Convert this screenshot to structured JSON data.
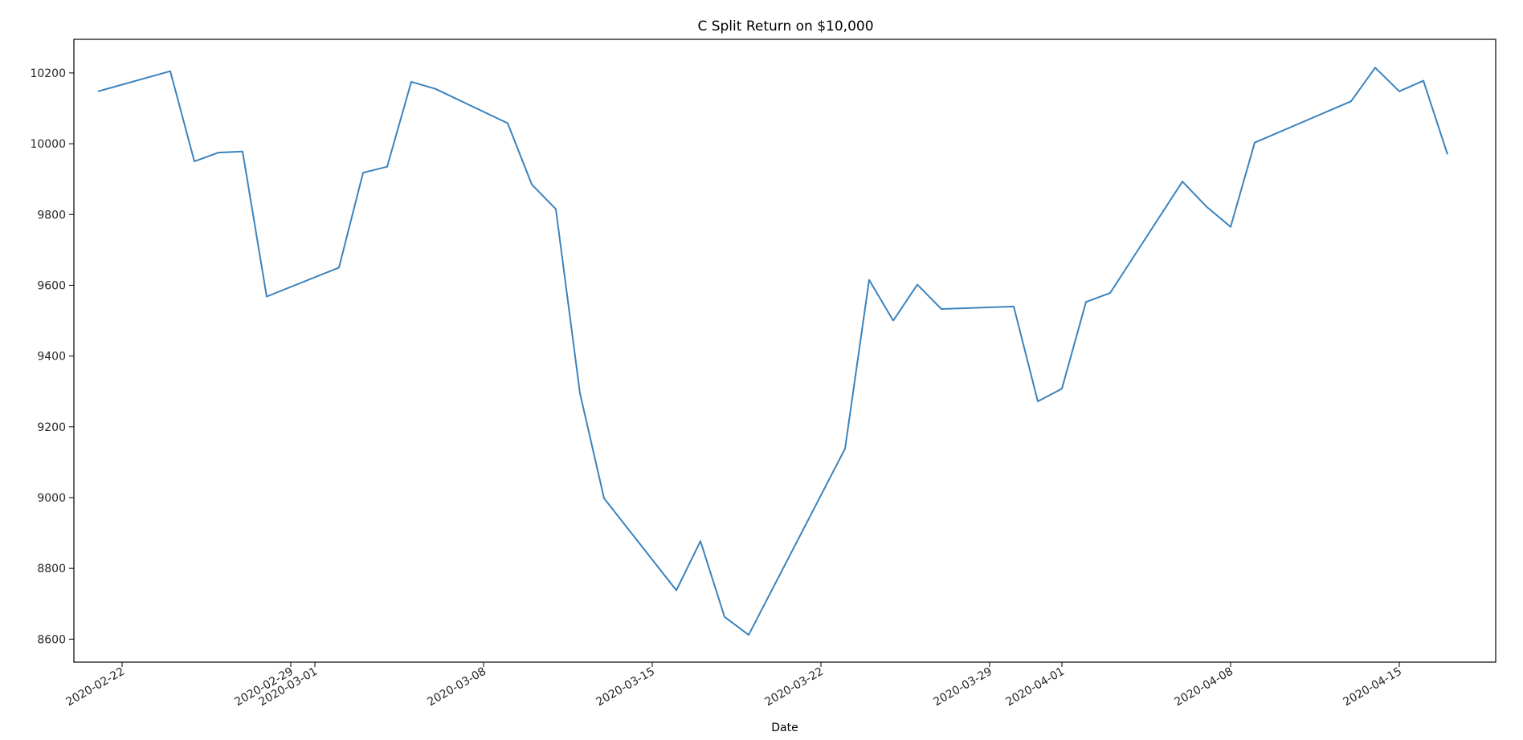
{
  "chart_data": {
    "type": "line",
    "title": "C Split Return on $10,000",
    "xlabel": "Date",
    "ylabel": "",
    "ylim": [
      8535,
      10295
    ],
    "xlim": [
      "2020-02-20",
      "2020-04-19"
    ],
    "grid": false,
    "colors": {
      "line": "#3b83bd",
      "axis": "#000000"
    },
    "x_ticks": [
      "2020-02-22",
      "2020-02-29",
      "2020-03-01",
      "2020-03-08",
      "2020-03-15",
      "2020-03-22",
      "2020-03-29",
      "2020-04-01",
      "2020-04-08",
      "2020-04-15"
    ],
    "y_ticks": [
      "8600",
      "8800",
      "9000",
      "9200",
      "9400",
      "9600",
      "9800",
      "10000",
      "10200"
    ],
    "series": [
      {
        "x": [
          "2020-02-21",
          "2020-02-24",
          "2020-02-25",
          "2020-02-26",
          "2020-02-27",
          "2020-02-28",
          "2020-03-02",
          "2020-03-03",
          "2020-03-04",
          "2020-03-05",
          "2020-03-06",
          "2020-03-09",
          "2020-03-10",
          "2020-03-11",
          "2020-03-12",
          "2020-03-13",
          "2020-03-16",
          "2020-03-17",
          "2020-03-18",
          "2020-03-19",
          "2020-03-23",
          "2020-03-24",
          "2020-03-25",
          "2020-03-26",
          "2020-03-27",
          "2020-03-30",
          "2020-03-31",
          "2020-04-01",
          "2020-04-02",
          "2020-04-03",
          "2020-04-06",
          "2020-04-07",
          "2020-04-08",
          "2020-04-09",
          "2020-04-13",
          "2020-04-14",
          "2020-04-15",
          "2020-04-16",
          "2020-04-17"
        ],
        "y": [
          10148,
          10205,
          9950,
          9975,
          9978,
          9568,
          9650,
          9918,
          9935,
          10175,
          10155,
          10058,
          9885,
          9815,
          9295,
          8998,
          8738,
          8877,
          8663,
          8612,
          9138,
          9615,
          9500,
          9602,
          9533,
          9540,
          9272,
          9308,
          9553,
          9578,
          9893,
          9822,
          9765,
          10003,
          10120,
          10215,
          10148,
          10178,
          9970
        ]
      }
    ]
  }
}
